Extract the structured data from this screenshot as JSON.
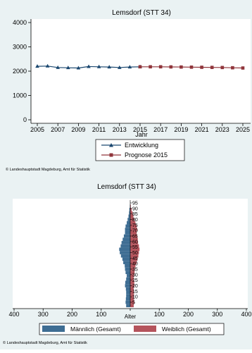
{
  "chart_data": [
    {
      "type": "line",
      "title": "Lemsdorf (STT 34)",
      "xlabel": "Jahr",
      "ylabel": "",
      "xlim": [
        2005,
        2025
      ],
      "ylim": [
        0,
        4000
      ],
      "x_ticks": [
        2005,
        2007,
        2009,
        2011,
        2013,
        2015,
        2017,
        2019,
        2021,
        2023,
        2025
      ],
      "y_ticks": [
        0,
        1000,
        2000,
        3000,
        4000
      ],
      "grid": false,
      "legend_position": "bottom",
      "series": [
        {
          "name": "Entwicklung",
          "color": "#1a476f",
          "marker": "triangle",
          "x": [
            2005,
            2006,
            2007,
            2008,
            2009,
            2010,
            2011,
            2012,
            2013,
            2014,
            2015
          ],
          "y": [
            2200,
            2210,
            2150,
            2140,
            2130,
            2190,
            2180,
            2170,
            2150,
            2170,
            2180
          ]
        },
        {
          "name": "Prognose 2015",
          "color": "#90353b",
          "marker": "square",
          "x": [
            2015,
            2016,
            2017,
            2018,
            2019,
            2020,
            2021,
            2022,
            2023,
            2024,
            2025
          ],
          "y": [
            2180,
            2180,
            2180,
            2175,
            2170,
            2165,
            2160,
            2155,
            2150,
            2140,
            2130
          ]
        }
      ]
    },
    {
      "type": "bar",
      "orientation": "horizontal",
      "variant": "population-pyramid",
      "title": "Lemsdorf (STT 34)",
      "xlabel": "",
      "ylabel": "Alter",
      "xlim": [
        -400,
        400
      ],
      "x_ticks": [
        400,
        300,
        200,
        100,
        0,
        100,
        200,
        300,
        400
      ],
      "age_ticks": [
        5,
        10,
        15,
        20,
        25,
        30,
        35,
        40,
        45,
        50,
        55,
        60,
        65,
        70,
        75,
        80,
        85,
        90,
        95
      ],
      "legend_position": "bottom",
      "series": [
        {
          "name": "Männlich (Gesamt)",
          "color": "#3e6d93",
          "side": "left",
          "ages": [
            2,
            5,
            8,
            11,
            14,
            17,
            20,
            23,
            26,
            29,
            32,
            35,
            38,
            41,
            44,
            47,
            50,
            53,
            56,
            59,
            62,
            65,
            68,
            71,
            74,
            77,
            80,
            83,
            86,
            89,
            92
          ],
          "values": [
            14,
            16,
            15,
            14,
            14,
            15,
            18,
            17,
            14,
            12,
            16,
            18,
            19,
            24,
            27,
            32,
            36,
            38,
            33,
            30,
            26,
            22,
            18,
            18,
            16,
            12,
            9,
            6,
            4,
            3,
            1
          ]
        },
        {
          "name": "Weiblich (Gesamt)",
          "color": "#b5545c",
          "side": "right",
          "ages": [
            2,
            5,
            8,
            11,
            14,
            17,
            20,
            23,
            26,
            29,
            32,
            35,
            38,
            41,
            44,
            47,
            50,
            53,
            56,
            59,
            62,
            65,
            68,
            71,
            74,
            77,
            80,
            83,
            86,
            89,
            92
          ],
          "values": [
            12,
            14,
            13,
            13,
            13,
            12,
            14,
            14,
            12,
            13,
            15,
            16,
            18,
            22,
            25,
            28,
            30,
            32,
            30,
            27,
            26,
            24,
            22,
            24,
            22,
            18,
            14,
            11,
            8,
            5,
            2
          ]
        }
      ]
    }
  ],
  "credits": [
    "© Landeshauptstadt Magdeburg, Amt für Statistik",
    "© Landeshauptstadt Magdeburg, Amt für Statistik"
  ]
}
